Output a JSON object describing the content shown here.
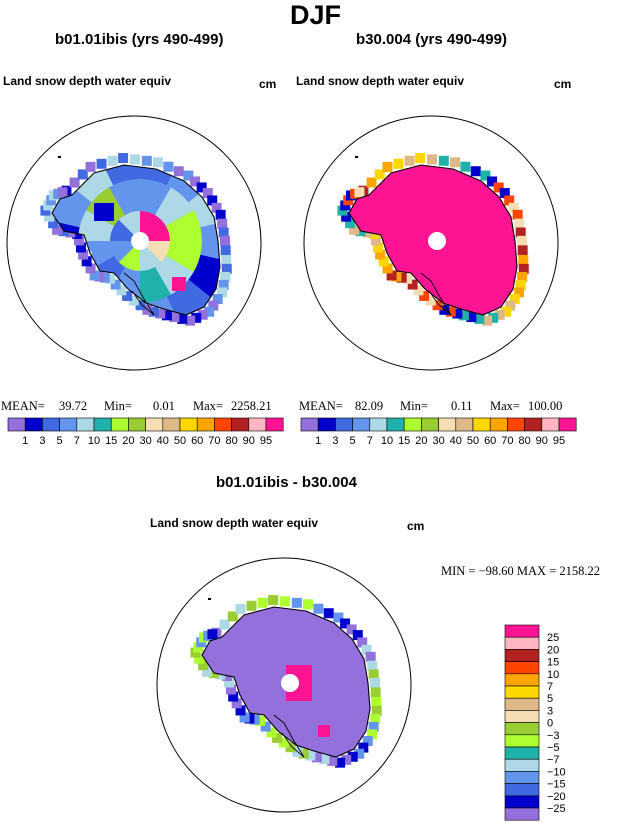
{
  "figure": {
    "title": "DJF"
  },
  "panels": [
    {
      "case": "b01.01ibis (yrs 490-499)",
      "variable": "Land snow depth water equiv",
      "units": "cm",
      "stats": {
        "mean_label": "MEAN=",
        "mean": "39.72",
        "min_label": "Min=",
        "min": "0.01",
        "max_label": "Max=",
        "max": "2258.21"
      }
    },
    {
      "case": "b30.004 (yrs 490-499)",
      "variable": "Land snow depth water equiv",
      "units": "cm",
      "stats": {
        "mean_label": "MEAN=",
        "mean": "82.09",
        "min_label": "Min=",
        "min": "0.11",
        "max_label": "Max=",
        "max": "100.00"
      }
    },
    {
      "case": "b01.01ibis - b30.004",
      "variable": "Land snow depth water equiv",
      "units": "cm",
      "stats": {
        "text": "MIN = −98.60  MAX = 2158.22"
      }
    }
  ],
  "colors": {
    "abs": [
      "#9370db",
      "#0000cd",
      "#4169e1",
      "#6495ed",
      "#add8e6",
      "#20b2aa",
      "#adff2f",
      "#9acd32",
      "#f5deb3",
      "#deb887",
      "#ffd700",
      "#ffa500",
      "#ff4500",
      "#b22222",
      "#ffb6c1",
      "#ff1493"
    ],
    "diff": [
      "#ff1493",
      "#ffb6c1",
      "#b22222",
      "#ff4500",
      "#ffa500",
      "#ffd700",
      "#deb887",
      "#f5deb3",
      "#9acd32",
      "#adff2f",
      "#20b2aa",
      "#add8e6",
      "#6495ed",
      "#4169e1",
      "#0000cd",
      "#9370db"
    ]
  },
  "chart_data": [
    {
      "type": "heatmap",
      "title": "b01.01ibis (yrs 490-499)",
      "subtitle": "Land snow depth water equiv",
      "units": "cm",
      "levels": [
        "1",
        "3",
        "5",
        "7",
        "10",
        "15",
        "20",
        "30",
        "40",
        "50",
        "60",
        "70",
        "80",
        "90",
        "95"
      ],
      "mean": 39.72,
      "min": 0.01,
      "max": 2258.21
    },
    {
      "type": "heatmap",
      "title": "b30.004 (yrs 490-499)",
      "subtitle": "Land snow depth water equiv",
      "units": "cm",
      "levels": [
        "1",
        "3",
        "5",
        "7",
        "10",
        "15",
        "20",
        "30",
        "40",
        "50",
        "60",
        "70",
        "80",
        "90",
        "95"
      ],
      "mean": 82.09,
      "min": 0.11,
      "max": 100.0
    },
    {
      "type": "heatmap",
      "title": "b01.01ibis - b30.004",
      "subtitle": "Land snow depth water equiv",
      "units": "cm",
      "levels": [
        "25",
        "20",
        "15",
        "10",
        "7",
        "5",
        "3",
        "0",
        "−3",
        "−5",
        "−7",
        "−10",
        "−15",
        "−20",
        "−25"
      ],
      "min": -98.6,
      "max": 2158.22
    }
  ]
}
